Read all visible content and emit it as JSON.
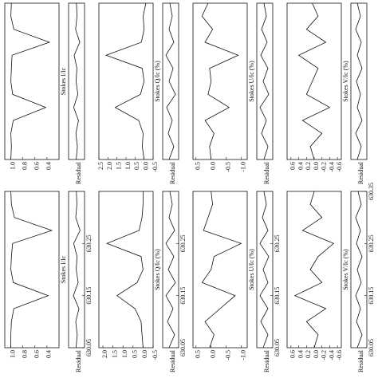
{
  "chart_data": [
    {
      "type": "line",
      "y_label": "Stokes I/Ic",
      "x": [
        630.05,
        630.075,
        630.1,
        630.125,
        630.15,
        630.175,
        630.2,
        630.225,
        630.25,
        630.275,
        630.3,
        630.325,
        630.35
      ],
      "values": [
        1.0,
        0.99,
        1.0,
        0.96,
        0.42,
        0.97,
        1.0,
        0.99,
        0.98,
        0.36,
        0.95,
        1.0,
        0.99
      ],
      "xlim": [
        630.05,
        630.35
      ],
      "ylim": [
        0.2,
        1.1
      ],
      "yticks": [
        {
          "value": 0.4,
          "label": "0.4"
        },
        {
          "value": 0.6,
          "label": "0.6"
        },
        {
          "value": 0.8,
          "label": "0.8"
        },
        {
          "value": 1,
          "label": "1.0"
        }
      ],
      "residual": {
        "label": "Residual",
        "ylim": [
          -0.5,
          0.5
        ],
        "values": [
          0.02,
          -0.05,
          0.04,
          -0.12,
          0.18,
          -0.08,
          0.03,
          -0.02,
          0.15,
          -0.2,
          0.06,
          -0.03,
          0.01
        ]
      }
    },
    {
      "type": "line",
      "y_label": "Stokes Q/Ic (%)",
      "x": [
        630.05,
        630.075,
        630.1,
        630.125,
        630.15,
        630.175,
        630.2,
        630.225,
        630.25,
        630.275,
        630.3,
        630.325,
        630.35
      ],
      "values": [
        0.0,
        0.1,
        0.05,
        0.3,
        1.6,
        0.2,
        0.0,
        0.1,
        2.1,
        0.15,
        0.0,
        0.05,
        -0.1
      ],
      "xlim": [
        630.05,
        630.35
      ],
      "ylim": [
        -0.5,
        2.5
      ],
      "yticks": [
        2.5,
        {
          "value": 2,
          "label": "2.0"
        },
        1.5,
        {
          "value": 1,
          "label": "1.0"
        },
        0.5,
        {
          "value": 0,
          "label": "0.0"
        },
        -0.5
      ],
      "residual": {
        "label": "Residual",
        "ylim": [
          -0.5,
          0.5
        ],
        "values": [
          0.1,
          -0.2,
          0.15,
          -0.1,
          0.25,
          -0.3,
          0.1,
          -0.15,
          0.3,
          -0.2,
          0.1,
          -0.1,
          0.05
        ]
      }
    },
    {
      "type": "line",
      "y_label": "Stokes U/Ic (%)",
      "x": [
        630.05,
        630.075,
        630.1,
        630.125,
        630.15,
        630.175,
        630.2,
        630.225,
        630.25,
        630.275,
        630.3,
        630.325,
        630.35
      ],
      "values": [
        0.0,
        0.05,
        -0.1,
        0.2,
        -0.6,
        0.1,
        0.0,
        0.05,
        -0.9,
        0.2,
        -0.05,
        0.3,
        0.1
      ],
      "xlim": [
        630.05,
        630.35
      ],
      "ylim": [
        -1.2,
        0.6
      ],
      "yticks": [
        0.5,
        {
          "value": 0,
          "label": "0.0"
        },
        -0.5,
        {
          "value": -1,
          "label": "-1.0"
        }
      ],
      "residual": {
        "label": "Residual",
        "ylim": [
          -0.5,
          0.5
        ],
        "values": [
          0.05,
          -0.2,
          0.2,
          -0.1,
          0.3,
          -0.25,
          0.1,
          -0.2,
          0.25,
          -0.15,
          0.2,
          -0.1,
          0.05
        ]
      }
    },
    {
      "type": "line",
      "y_label": "Stokes V/Ic (%)",
      "x": [
        630.05,
        630.075,
        630.1,
        630.125,
        630.15,
        630.175,
        630.2,
        630.225,
        630.25,
        630.275,
        630.3,
        630.325,
        630.35
      ],
      "values": [
        0.0,
        0.1,
        -0.2,
        0.3,
        -0.4,
        0.2,
        0.05,
        -0.1,
        0.4,
        -0.3,
        0.2,
        -0.1,
        0.05
      ],
      "xlim": [
        630.05,
        630.35
      ],
      "ylim": [
        -0.7,
        0.7
      ],
      "yticks": [
        0.6,
        0.4,
        0.2,
        {
          "value": 0,
          "label": "0.0"
        },
        -0.2,
        -0.4,
        -0.6
      ],
      "residual": {
        "label": "Residual",
        "ylim": [
          -0.5,
          0.5
        ],
        "values": [
          0.1,
          -0.15,
          0.2,
          -0.2,
          0.1,
          -0.1,
          0.15,
          -0.2,
          0.1,
          -0.15,
          0.2,
          -0.1,
          0.1
        ]
      }
    },
    {
      "type": "line",
      "y_label": "Stokes I/Ic",
      "x": [
        630.05,
        630.075,
        630.1,
        630.125,
        630.15,
        630.175,
        630.2,
        630.225,
        630.25,
        630.275,
        630.3,
        630.325,
        630.35
      ],
      "values": [
        1.0,
        1.0,
        0.99,
        0.95,
        0.38,
        0.96,
        1.0,
        0.99,
        0.97,
        0.32,
        0.94,
        0.99,
        1.0
      ],
      "xlim": [
        630.05,
        630.35
      ],
      "ylim": [
        0.2,
        1.1
      ],
      "yticks": [
        {
          "value": 0.4,
          "label": "0.4"
        },
        {
          "value": 0.6,
          "label": "0.6"
        },
        {
          "value": 0.8,
          "label": "0.8"
        },
        {
          "value": 1,
          "label": "1.0"
        }
      ],
      "xticks": [
        630.05,
        630.15,
        630.25
      ],
      "residual": {
        "label": "Residual",
        "ylim": [
          -0.5,
          0.5
        ],
        "values": [
          0.03,
          -0.04,
          0.05,
          -0.15,
          0.2,
          -0.1,
          0.02,
          -0.03,
          0.18,
          -0.22,
          0.05,
          -0.02,
          0.01
        ]
      }
    },
    {
      "type": "line",
      "y_label": "Stokes Q/Ic (%)",
      "x": [
        630.05,
        630.075,
        630.1,
        630.125,
        630.15,
        630.175,
        630.2,
        630.225,
        630.25,
        630.275,
        630.3,
        630.325,
        630.35
      ],
      "values": [
        0.0,
        0.05,
        0.1,
        0.4,
        1.3,
        0.3,
        0.0,
        0.1,
        1.8,
        0.2,
        0.05,
        0.0,
        0.0
      ],
      "xlim": [
        630.05,
        630.35
      ],
      "ylim": [
        -0.5,
        2.2
      ],
      "yticks": [
        {
          "value": 2,
          "label": "2.0"
        },
        1.5,
        {
          "value": 1,
          "label": "1.0"
        },
        0.5,
        {
          "value": 0,
          "label": "0.0"
        },
        -0.5
      ],
      "xticks": [
        630.05,
        630.15,
        630.25
      ],
      "residual": {
        "label": "Residual",
        "ylim": [
          -0.5,
          0.5
        ],
        "values": [
          0.1,
          -0.25,
          0.2,
          -0.15,
          0.3,
          -0.3,
          0.15,
          -0.2,
          0.3,
          -0.25,
          0.1,
          -0.1,
          0.05
        ]
      }
    },
    {
      "type": "line",
      "y_label": "Stokes U/Ic (%)",
      "x": [
        630.05,
        630.075,
        630.1,
        630.125,
        630.15,
        630.175,
        630.2,
        630.225,
        630.25,
        630.275,
        630.3,
        630.325,
        630.35
      ],
      "values": [
        0.05,
        -0.1,
        0.2,
        -0.3,
        -0.8,
        0.3,
        0.0,
        -0.1,
        -1.0,
        0.25,
        0.1,
        -0.05,
        0.0
      ],
      "xlim": [
        630.05,
        630.35
      ],
      "ylim": [
        -1.2,
        0.6
      ],
      "yticks": [
        0.5,
        {
          "value": 0,
          "label": "0.0"
        },
        -0.5,
        {
          "value": -1,
          "label": "-1.0"
        }
      ],
      "xticks": [
        630.05,
        630.15,
        630.25
      ],
      "residual": {
        "label": "Residual",
        "ylim": [
          -0.5,
          0.5
        ],
        "values": [
          0.1,
          -0.2,
          0.25,
          -0.2,
          0.3,
          -0.2,
          0.1,
          -0.25,
          0.3,
          -0.2,
          0.15,
          -0.1,
          0.05
        ]
      }
    },
    {
      "type": "line",
      "y_label": "Stokes V/Ic (%)",
      "x": [
        630.05,
        630.075,
        630.1,
        630.125,
        630.15,
        630.175,
        630.2,
        630.225,
        630.25,
        630.275,
        630.3,
        630.325,
        630.35
      ],
      "values": [
        0.0,
        -0.1,
        0.2,
        -0.3,
        0.5,
        -0.2,
        0.1,
        -0.1,
        -0.5,
        0.3,
        -0.2,
        0.1,
        0.0
      ],
      "xlim": [
        630.05,
        630.35
      ],
      "ylim": [
        -0.7,
        0.7
      ],
      "yticks": [
        0.6,
        0.4,
        0.2,
        {
          "value": 0,
          "label": "0.0"
        },
        -0.2,
        -0.4,
        -0.6
      ],
      "xticks": [
        630.05,
        630.15,
        630.25,
        630.35
      ],
      "residual": {
        "label": "Residual",
        "ylim": [
          -0.5,
          0.5
        ],
        "values": [
          0.1,
          -0.2,
          0.15,
          -0.1,
          0.2,
          -0.15,
          0.1,
          -0.2,
          0.15,
          -0.1,
          0.2,
          -0.15,
          0.05
        ]
      }
    }
  ]
}
